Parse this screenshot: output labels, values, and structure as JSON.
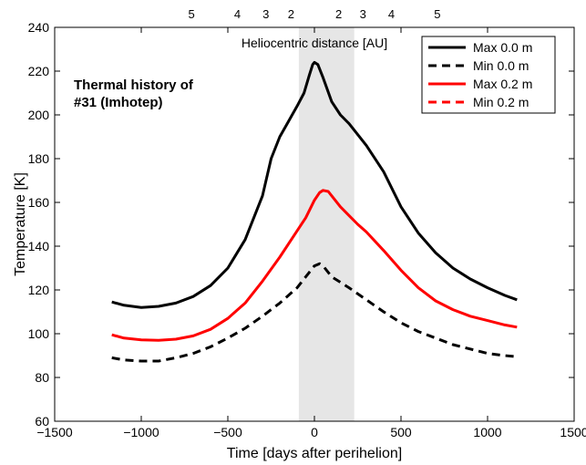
{
  "chart_data": {
    "type": "line",
    "title_lines": [
      "Thermal history of",
      "#31 (Imhotep)"
    ],
    "xlabel": "Time [days after perihelion]",
    "ylabel": "Temperature [K]",
    "top_axis_label": "Heliocentric distance [AU]",
    "xlim": [
      -1500,
      1500
    ],
    "ylim": [
      60,
      240
    ],
    "xticks": [
      -1500,
      -1000,
      -500,
      0,
      500,
      1000,
      1500
    ],
    "yticks": [
      60,
      80,
      100,
      120,
      140,
      160,
      180,
      200,
      220,
      240
    ],
    "xtick_labels": [
      "−1500",
      "−1000",
      "−500",
      "0",
      "500",
      "1000",
      "1500"
    ],
    "ytick_labels": [
      "60",
      "80",
      "100",
      "120",
      "140",
      "160",
      "180",
      "200",
      "220",
      "240"
    ],
    "top_ticks": [
      {
        "x": -710,
        "label": "5"
      },
      {
        "x": -445,
        "label": "4"
      },
      {
        "x": -280,
        "label": "3"
      },
      {
        "x": -135,
        "label": "2"
      },
      {
        "x": 140,
        "label": "2"
      },
      {
        "x": 280,
        "label": "3"
      },
      {
        "x": 445,
        "label": "4"
      },
      {
        "x": 710,
        "label": "5"
      }
    ],
    "shaded_region": {
      "x0": -90,
      "x1": 230,
      "color": "#e6e6e6"
    },
    "grid": false,
    "legend_position": "top-right",
    "series": [
      {
        "name": "Max 0.0 m",
        "color": "#000000",
        "dash": "solid",
        "x": [
          -1170,
          -1100,
          -1000,
          -900,
          -800,
          -700,
          -600,
          -500,
          -400,
          -300,
          -250,
          -200,
          -150,
          -100,
          -60,
          -30,
          -10,
          0,
          20,
          50,
          100,
          150,
          200,
          250,
          300,
          400,
          500,
          600,
          700,
          800,
          900,
          1000,
          1100,
          1170
        ],
        "y": [
          114.5,
          113,
          112,
          112.5,
          114,
          117,
          122,
          130,
          143,
          163,
          180,
          190,
          197,
          204,
          210,
          218,
          223,
          224,
          223,
          217,
          206,
          200,
          196,
          191,
          186,
          174,
          158,
          146,
          137,
          130,
          125,
          121,
          117.5,
          115.5
        ]
      },
      {
        "name": "Min 0.0 m",
        "color": "#000000",
        "dash": "dashed",
        "x": [
          -1170,
          -1100,
          -1000,
          -900,
          -800,
          -700,
          -600,
          -500,
          -400,
          -300,
          -200,
          -100,
          -50,
          0,
          30,
          50,
          100,
          200,
          300,
          400,
          500,
          600,
          700,
          800,
          900,
          1000,
          1100,
          1170
        ],
        "y": [
          89,
          88,
          87.5,
          87.5,
          89,
          91,
          94,
          98,
          102.5,
          108,
          114,
          121,
          126,
          131,
          132,
          131,
          126,
          121,
          115.5,
          110,
          105,
          101,
          98,
          95,
          93,
          91,
          90,
          89.5
        ]
      },
      {
        "name": "Max 0.2 m",
        "color": "#ff0000",
        "dash": "solid",
        "x": [
          -1170,
          -1100,
          -1000,
          -900,
          -800,
          -700,
          -600,
          -500,
          -400,
          -300,
          -200,
          -100,
          -50,
          0,
          30,
          50,
          80,
          100,
          150,
          200,
          250,
          300,
          400,
          500,
          600,
          700,
          800,
          900,
          1000,
          1100,
          1170
        ],
        "y": [
          99.5,
          98,
          97.2,
          97,
          97.5,
          99,
          102,
          107,
          114,
          124,
          135,
          147,
          153,
          161,
          164.5,
          165.5,
          165,
          163,
          158,
          154,
          150,
          146.5,
          138,
          129,
          121,
          115,
          111,
          108,
          106,
          104,
          103
        ]
      },
      {
        "name": "Min 0.2 m",
        "color": "#ff0000",
        "dash": "dashed",
        "x": [],
        "y": []
      }
    ]
  }
}
